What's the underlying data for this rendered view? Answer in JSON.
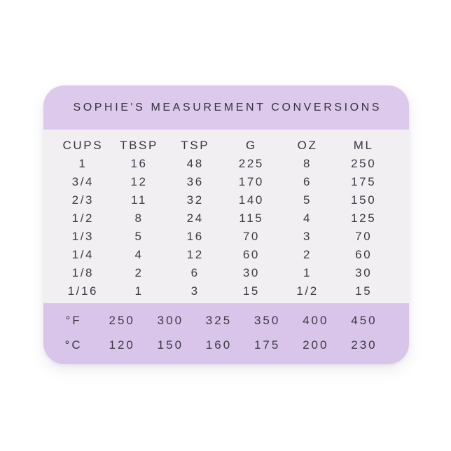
{
  "magnet": {
    "title": "SOPHIE'S MEASUREMENT CONVERSIONS",
    "colors": {
      "band_top": "#dcc9ec",
      "band_bottom": "#d8c5e9",
      "body": "#f2eff2",
      "text": "#3e3945",
      "page_background": "#ffffff"
    },
    "conversion_table": {
      "headers": [
        "CUPS",
        "TBSP",
        "TSP",
        "G",
        "OZ",
        "ML"
      ],
      "rows": [
        [
          "1",
          "16",
          "48",
          "225",
          "8",
          "250"
        ],
        [
          "3/4",
          "12",
          "36",
          "170",
          "6",
          "175"
        ],
        [
          "2/3",
          "11",
          "32",
          "140",
          "5",
          "150"
        ],
        [
          "1/2",
          "8",
          "24",
          "115",
          "4",
          "125"
        ],
        [
          "1/3",
          "5",
          "16",
          "70",
          "3",
          "70"
        ],
        [
          "1/4",
          "4",
          "12",
          "60",
          "2",
          "60"
        ],
        [
          "1/8",
          "2",
          "6",
          "30",
          "1",
          "30"
        ],
        [
          "1/16",
          "1",
          "3",
          "15",
          "1/2",
          "15"
        ]
      ]
    },
    "temperature_table": {
      "rows": [
        [
          "°F",
          "250",
          "300",
          "325",
          "350",
          "400",
          "450"
        ],
        [
          "°C",
          "120",
          "150",
          "160",
          "175",
          "200",
          "230"
        ]
      ]
    }
  },
  "chart_data": {
    "type": "table",
    "title": "SOPHIE'S MEASUREMENT CONVERSIONS",
    "columns": [
      "CUPS",
      "TBSP",
      "TSP",
      "G",
      "OZ",
      "ML"
    ],
    "rows": [
      [
        "1",
        16,
        48,
        225,
        8,
        250
      ],
      [
        "3/4",
        12,
        36,
        170,
        6,
        175
      ],
      [
        "2/3",
        11,
        32,
        140,
        5,
        150
      ],
      [
        "1/2",
        8,
        24,
        115,
        4,
        125
      ],
      [
        "1/3",
        5,
        16,
        70,
        3,
        70
      ],
      [
        "1/4",
        4,
        12,
        60,
        2,
        60
      ],
      [
        "1/8",
        2,
        6,
        30,
        1,
        30
      ],
      [
        "1/16",
        1,
        3,
        15,
        "1/2",
        15
      ]
    ],
    "temperature": {
      "fahrenheit": [
        250,
        300,
        325,
        350,
        400,
        450
      ],
      "celsius": [
        120,
        150,
        160,
        175,
        200,
        230
      ]
    },
    "layout": "two lavender bands (title top, temperatures bottom) around white table body"
  }
}
